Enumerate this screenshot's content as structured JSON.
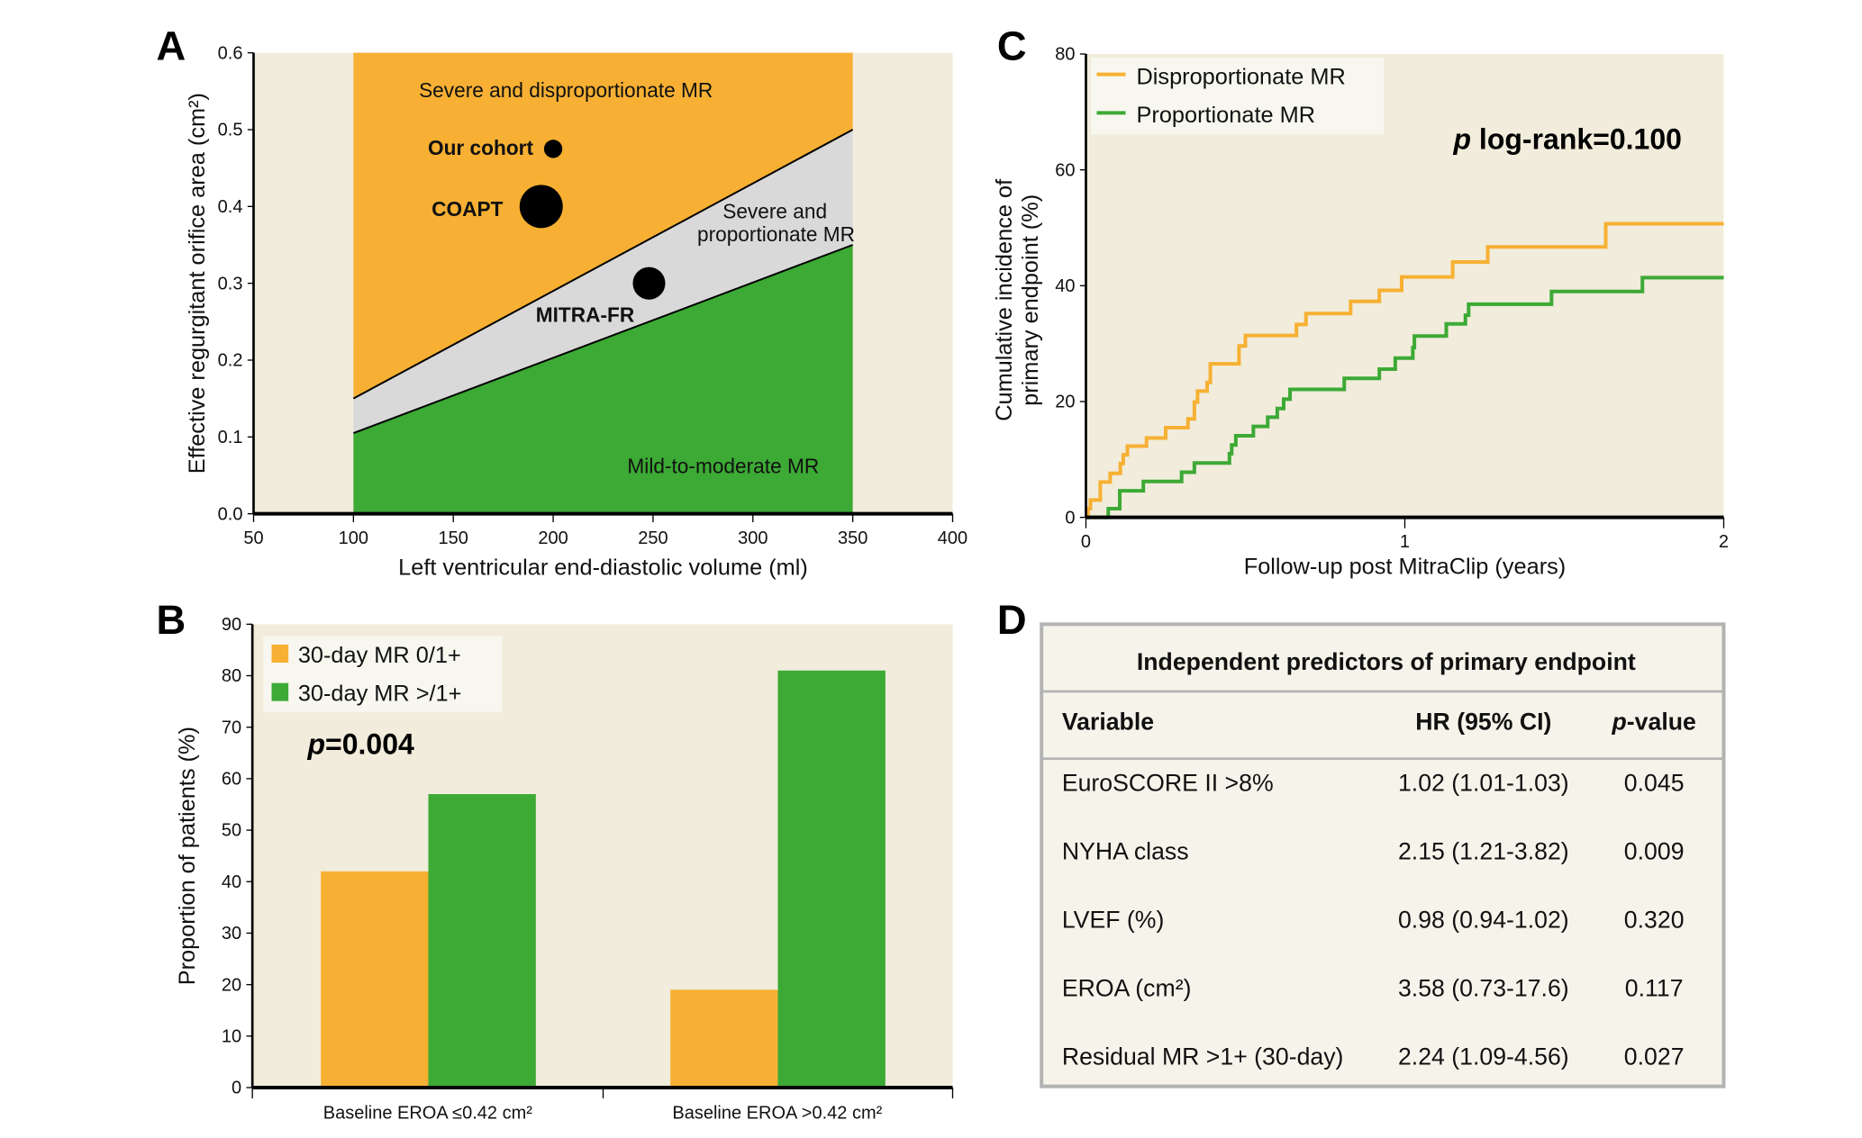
{
  "colors": {
    "orange": "#f7b033",
    "green": "#3caa35",
    "grey": "#d9d9d9",
    "bg": "#f1ecdb",
    "legend_bg": "#f8f7ef",
    "table_bg": "#f6f4ea",
    "table_border": "#b3b3b3"
  },
  "chart_data": [
    {
      "panel": "A",
      "type": "area",
      "xlabel": "Left ventricular end-diastolic volume (ml)",
      "ylabel": "Effective regurgitant orifice area (cm²)",
      "xlim": [
        50,
        400
      ],
      "ylim": [
        0,
        0.6
      ],
      "xticks": [
        "50",
        "100",
        "150",
        "200",
        "250",
        "300",
        "350",
        "400"
      ],
      "yticks": [
        "0.0",
        "0.1",
        "0.2",
        "0.3",
        "0.4",
        "0.5",
        "0.6"
      ],
      "region_x": [
        100,
        350
      ],
      "upper_boundary": [
        [
          100,
          0.15
        ],
        [
          350,
          0.5
        ]
      ],
      "lower_boundary": [
        [
          100,
          0.105
        ],
        [
          350,
          0.35
        ]
      ],
      "region_labels": {
        "top": "Severe and disproportionate MR",
        "middle_1": "Severe and",
        "middle_2": "proportionate MR",
        "bottom": "Mild-to-moderate MR"
      },
      "points": [
        {
          "label": "Our cohort",
          "x": 200,
          "y": 0.475,
          "size": 1
        },
        {
          "label": "COAPT",
          "x": 194,
          "y": 0.4,
          "size": 3.2
        },
        {
          "label": "MITRA-FR",
          "x": 248,
          "y": 0.3,
          "size": 2.1
        }
      ]
    },
    {
      "panel": "B",
      "type": "bar",
      "ylabel": "Proportion of patients (%)",
      "ylim": [
        0,
        90
      ],
      "yticks": [
        "0",
        "10",
        "20",
        "30",
        "40",
        "50",
        "60",
        "70",
        "80",
        "90"
      ],
      "categories": [
        "Baseline EROA ≤0.42 cm²",
        "Baseline EROA >0.42 cm²"
      ],
      "series": [
        {
          "name": "30-day MR 0/1+",
          "values": [
            42,
            19
          ]
        },
        {
          "name": "30-day MR >/1+",
          "values": [
            57,
            81
          ]
        }
      ],
      "annotation_p": "p",
      "annotation_rest": "=0.004",
      "legend": "top-left"
    },
    {
      "panel": "C",
      "type": "line",
      "xlabel": "Follow-up post MitraClip (years)",
      "ylabel_1": "Cumulative incidence of",
      "ylabel_2": "primary endpoint (%)",
      "xlim": [
        0,
        2
      ],
      "ylim": [
        0,
        80
      ],
      "xticks": [
        "0",
        "1",
        "2"
      ],
      "yticks": [
        "0",
        "20",
        "40",
        "60",
        "80"
      ],
      "annotation_p": "p",
      "annotation_rest": " log-rank=0.100",
      "legend": "top-left",
      "series": [
        {
          "name": "Disproportionate MR",
          "steps": [
            [
              0,
              0
            ],
            [
              0.007,
              1.5
            ],
            [
              0.014,
              3
            ],
            [
              0.045,
              6.1
            ],
            [
              0.076,
              7.6
            ],
            [
              0.108,
              9.3
            ],
            [
              0.117,
              10.8
            ],
            [
              0.13,
              12.3
            ],
            [
              0.19,
              13.7
            ],
            [
              0.25,
              15.5
            ],
            [
              0.32,
              17
            ],
            [
              0.34,
              19.9
            ],
            [
              0.35,
              21.8
            ],
            [
              0.38,
              23.3
            ],
            [
              0.39,
              26.5
            ],
            [
              0.48,
              29.6
            ],
            [
              0.5,
              31.4
            ],
            [
              0.66,
              33.3
            ],
            [
              0.69,
              35.2
            ],
            [
              0.83,
              37.3
            ],
            [
              0.92,
              39.2
            ],
            [
              0.99,
              41.5
            ],
            [
              1.15,
              44.1
            ],
            [
              1.26,
              46.7
            ],
            [
              1.63,
              50.7
            ],
            [
              2,
              50.7
            ]
          ]
        },
        {
          "name": "Proportionate MR",
          "steps": [
            [
              0,
              0
            ],
            [
              0.07,
              1.5
            ],
            [
              0.106,
              4.6
            ],
            [
              0.18,
              6.2
            ],
            [
              0.3,
              7.8
            ],
            [
              0.34,
              9.4
            ],
            [
              0.45,
              11
            ],
            [
              0.457,
              12.5
            ],
            [
              0.47,
              14.1
            ],
            [
              0.525,
              15.7
            ],
            [
              0.57,
              17.3
            ],
            [
              0.6,
              18.8
            ],
            [
              0.62,
              20.4
            ],
            [
              0.64,
              22.1
            ],
            [
              0.81,
              24
            ],
            [
              0.92,
              25.6
            ],
            [
              0.97,
              27.5
            ],
            [
              1.025,
              29.3
            ],
            [
              1.03,
              31.3
            ],
            [
              1.13,
              33.4
            ],
            [
              1.19,
              34.9
            ],
            [
              1.2,
              36.8
            ],
            [
              1.46,
              39
            ],
            [
              1.745,
              41.4
            ],
            [
              2,
              41.4
            ]
          ]
        }
      ]
    }
  ],
  "panel_labels": {
    "a": "A",
    "b": "B",
    "c": "C",
    "d": "D"
  },
  "table": {
    "title": "Independent predictors of primary endpoint",
    "headers": {
      "variable": "Variable",
      "hr": "HR (95% CI)",
      "p_italic": "p",
      "p_rest": "-value"
    },
    "rows": [
      {
        "variable": "EuroSCORE II >8%",
        "hr": "1.02 (1.01-1.03)",
        "p": "0.045"
      },
      {
        "variable": "NYHA class",
        "hr": "2.15 (1.21-3.82)",
        "p": "0.009"
      },
      {
        "variable": "LVEF (%)",
        "hr": "0.98 (0.94-1.02)",
        "p": "0.320"
      },
      {
        "variable": "EROA (cm²)",
        "hr": "3.58 (0.73-17.6)",
        "p": "0.117"
      },
      {
        "variable": "Residual MR >1+ (30-day)",
        "hr": "2.24 (1.09-4.56)",
        "p": "0.027"
      }
    ]
  }
}
